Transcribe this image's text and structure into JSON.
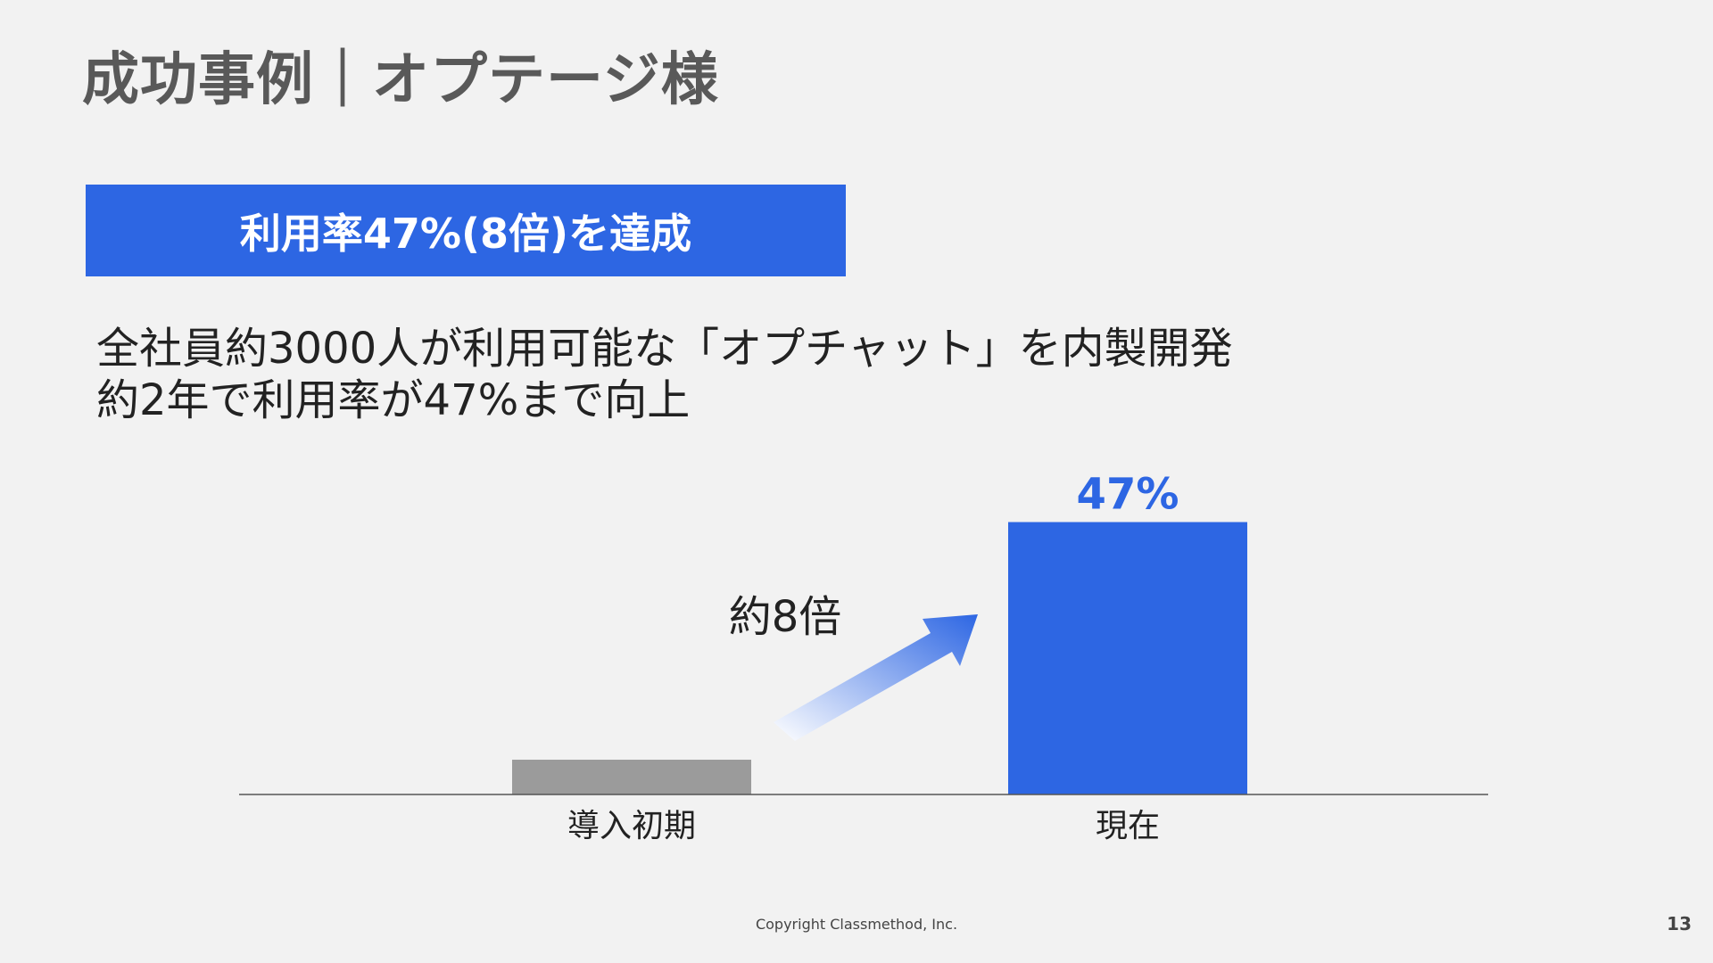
{
  "slide": {
    "title": "成功事例｜オプテージ様",
    "banner": "利用率47%(8倍)を達成",
    "description": [
      "全社員約3000人が利用可能な「オプチャット」を内製開発",
      "約2年で利用率が47%まで向上"
    ],
    "footer": "Copyright Classmethod, Inc.",
    "page_number": "13"
  },
  "chart_data": {
    "type": "bar",
    "categories": [
      "導入初期",
      "現在"
    ],
    "values": [
      6,
      47
    ],
    "value_labels": [
      "",
      "47%"
    ],
    "annotation": "約8倍",
    "ylim": [
      0,
      50
    ],
    "bar_colors": [
      "#9b9b9b",
      "#2d66e3"
    ],
    "label_color": "#2d66e3",
    "arrow_colors": [
      "#ffffff",
      "#2d66e3"
    ]
  }
}
